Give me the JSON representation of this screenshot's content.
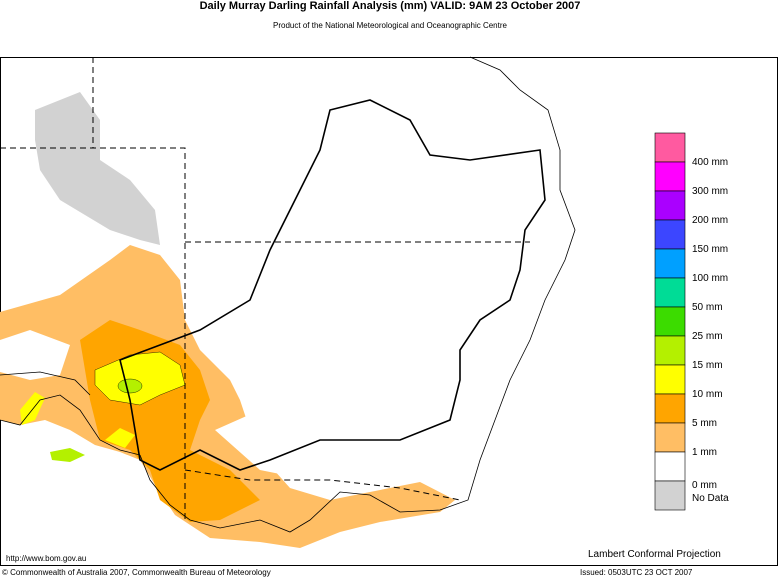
{
  "header": {
    "title": "Daily Murray Darling Rainfall Analysis (mm)  VALID: 9AM 23 October 2007",
    "subtitle": "Product of the National Meteorological and Oceanographic Centre"
  },
  "legend": {
    "colors": [
      "#ff5aa0",
      "#ff00ff",
      "#aa00ff",
      "#3c46ff",
      "#00a0ff",
      "#00dc96",
      "#3cdc00",
      "#b4f000",
      "#ffff00",
      "#ffa500",
      "#ffbe64",
      "#ffffff",
      "#d2d2d2"
    ],
    "labels": [
      "400 mm",
      "300 mm",
      "200 mm",
      "150 mm",
      "100 mm",
      "50 mm",
      "25 mm",
      "15 mm",
      "10 mm",
      "5 mm",
      "1 mm",
      "0 mm",
      "No Data"
    ]
  },
  "footer": {
    "url": "http://www.bom.gov.au",
    "projection": "Lambert Conformal Projection",
    "copyright": "© Commonwealth of Australia 2007, Commonwealth Bureau of Meteorology",
    "issued": "Issued: 0503UTC 23 OCT 2007"
  }
}
